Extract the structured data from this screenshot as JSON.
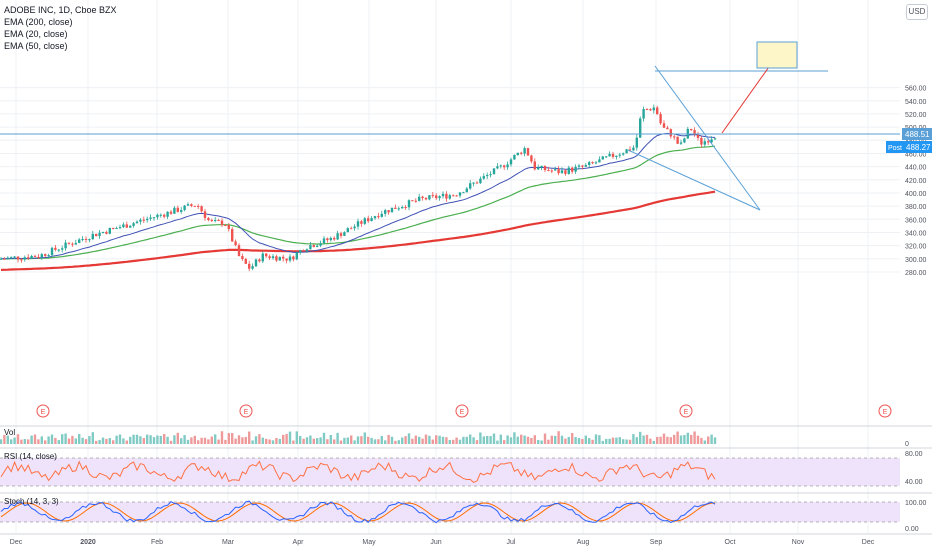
{
  "title": "ADOBE INC, 1D, Cboe BZX",
  "indicators": [
    "EMA (200, close)",
    "EMA (20, close)",
    "EMA (50, close)"
  ],
  "currency": "USD",
  "y_ticks": [
    "560.00",
    "540.00",
    "520.00",
    "500.00",
    "480.00",
    "460.00",
    "440.00",
    "420.00",
    "400.00",
    "380.00",
    "360.00",
    "340.00",
    "320.00",
    "300.00",
    "280.00"
  ],
  "price_label": "488.51",
  "post_label": "Post",
  "post_price": "488.27",
  "x_ticks": [
    "Dec",
    "2020",
    "Feb",
    "Mar",
    "Apr",
    "May",
    "Jun",
    "Jul",
    "Aug",
    "Sep",
    "Oct",
    "Nov",
    "Dec"
  ],
  "earnings_marker": "E",
  "vol_label": "Vol",
  "vol_tick": "0",
  "rsi_label": "RSI (14, close)",
  "rsi_ticks": [
    "80.00",
    "40.00"
  ],
  "stoch_label": "Stoch (14, 3, 3)",
  "stoch_ticks": [
    "100.00",
    "0.00"
  ],
  "colors": {
    "up": "#26a69a",
    "down": "#ef5350",
    "ema200": "#e53935",
    "ema20": "#3f51b5",
    "ema50": "#4caf50",
    "trend": "#5aa0d6",
    "rsi": "#ff7043",
    "stoch_k": "#2962ff",
    "stoch_d": "#ff6d00"
  }
}
